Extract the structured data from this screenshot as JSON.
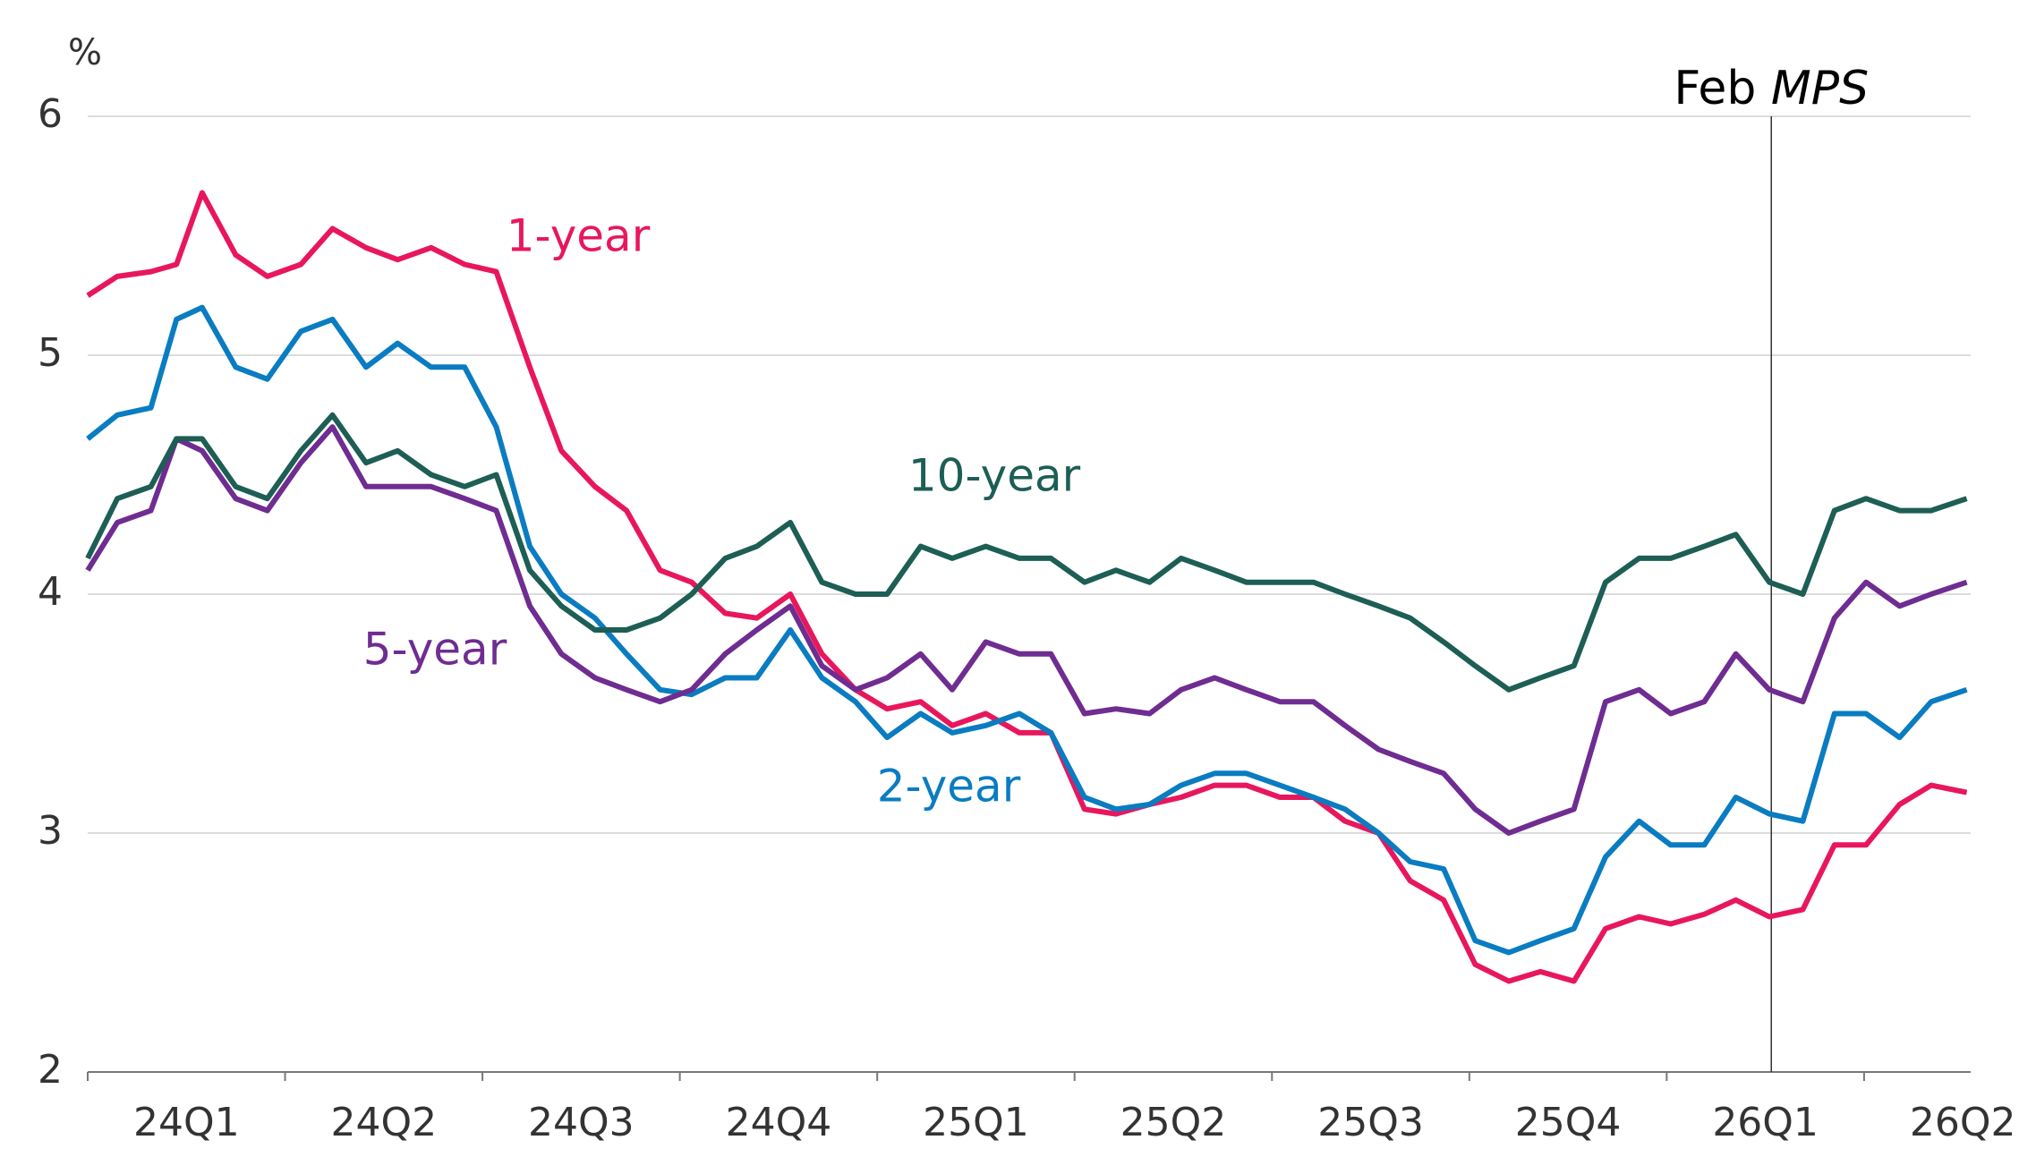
{
  "chart_data": {
    "type": "line",
    "y_unit": "%",
    "x": [
      0,
      0.15,
      0.32,
      0.45,
      0.58,
      0.75,
      0.91,
      1.08,
      1.24,
      1.41,
      1.57,
      1.74,
      1.91,
      2.07,
      2.24,
      2.4,
      2.57,
      2.73,
      2.9,
      3.06,
      3.23,
      3.39,
      3.56,
      3.72,
      3.89,
      4.05,
      4.22,
      4.38,
      4.55,
      4.72,
      4.88,
      5.05,
      5.21,
      5.38,
      5.54,
      5.71,
      5.87,
      6.04,
      6.21,
      6.37,
      6.54,
      6.7,
      6.87,
      7.03,
      7.2,
      7.36,
      7.53,
      7.69,
      7.86,
      8.02,
      8.19,
      8.35,
      8.52,
      8.69,
      8.85,
      9.01,
      9.18,
      9.34,
      9.52
    ],
    "categories": [
      "24Q1",
      "24Q2",
      "24Q3",
      "24Q4",
      "25Q1",
      "25Q2",
      "25Q3",
      "25Q4",
      "26Q1",
      "26Q2"
    ],
    "xlim": [
      0,
      9.54
    ],
    "xticks": [
      0,
      1,
      2,
      3,
      4,
      5,
      6,
      7,
      8,
      9
    ],
    "ylim": [
      2,
      6
    ],
    "yticks": [
      2,
      3,
      4,
      5,
      6
    ],
    "grid": true,
    "annotation": {
      "text": "Feb",
      "emph": "MPS",
      "x": 8.53
    },
    "series": [
      {
        "name": "1-year",
        "color": "#e8175d",
        "values": [
          5.25,
          5.33,
          5.35,
          5.38,
          5.68,
          5.42,
          5.33,
          5.38,
          5.53,
          5.45,
          5.4,
          5.45,
          5.38,
          5.35,
          4.95,
          4.6,
          4.45,
          4.35,
          4.1,
          4.05,
          3.92,
          3.9,
          4.0,
          3.75,
          3.6,
          3.52,
          3.55,
          3.45,
          3.5,
          3.42,
          3.42,
          3.1,
          3.08,
          3.12,
          3.15,
          3.2,
          3.2,
          3.15,
          3.15,
          3.05,
          3.0,
          2.8,
          2.72,
          2.45,
          2.38,
          2.42,
          2.38,
          2.6,
          2.65,
          2.62,
          2.66,
          2.72,
          2.65,
          2.68,
          2.95,
          2.95,
          3.12,
          3.2,
          3.17
        ]
      },
      {
        "name": "2-year",
        "color": "#0a7cc1",
        "values": [
          4.65,
          4.75,
          4.78,
          5.15,
          5.2,
          4.95,
          4.9,
          5.1,
          5.15,
          4.95,
          5.05,
          4.95,
          4.95,
          4.7,
          4.2,
          4.0,
          3.9,
          3.75,
          3.6,
          3.58,
          3.65,
          3.65,
          3.85,
          3.65,
          3.55,
          3.4,
          3.5,
          3.42,
          3.45,
          3.5,
          3.42,
          3.15,
          3.1,
          3.12,
          3.2,
          3.25,
          3.25,
          3.2,
          3.15,
          3.1,
          3.0,
          2.88,
          2.85,
          2.55,
          2.5,
          2.55,
          2.6,
          2.9,
          3.05,
          2.95,
          2.95,
          3.15,
          3.08,
          3.05,
          3.5,
          3.5,
          3.4,
          3.55,
          3.6
        ]
      },
      {
        "name": "5-year",
        "color": "#6f2c91",
        "values": [
          4.1,
          4.3,
          4.35,
          4.65,
          4.6,
          4.4,
          4.35,
          4.55,
          4.7,
          4.45,
          4.45,
          4.45,
          4.4,
          4.35,
          3.95,
          3.75,
          3.65,
          3.6,
          3.55,
          3.6,
          3.75,
          3.85,
          3.95,
          3.7,
          3.6,
          3.65,
          3.75,
          3.6,
          3.8,
          3.75,
          3.75,
          3.5,
          3.52,
          3.5,
          3.6,
          3.65,
          3.6,
          3.55,
          3.55,
          3.45,
          3.35,
          3.3,
          3.25,
          3.1,
          3.0,
          3.05,
          3.1,
          3.55,
          3.6,
          3.5,
          3.55,
          3.75,
          3.6,
          3.55,
          3.9,
          4.05,
          3.95,
          4.0,
          4.05
        ]
      },
      {
        "name": "10-year",
        "color": "#1d5e55",
        "values": [
          4.15,
          4.4,
          4.45,
          4.65,
          4.65,
          4.45,
          4.4,
          4.6,
          4.75,
          4.55,
          4.6,
          4.5,
          4.45,
          4.5,
          4.1,
          3.95,
          3.85,
          3.85,
          3.9,
          4.0,
          4.15,
          4.2,
          4.3,
          4.05,
          4.0,
          4.0,
          4.2,
          4.15,
          4.2,
          4.15,
          4.15,
          4.05,
          4.1,
          4.05,
          4.15,
          4.1,
          4.05,
          4.05,
          4.05,
          4.0,
          3.95,
          3.9,
          3.8,
          3.7,
          3.6,
          3.65,
          3.7,
          4.05,
          4.15,
          4.15,
          4.2,
          4.25,
          4.05,
          4.0,
          4.35,
          4.4,
          4.35,
          4.35,
          4.4
        ]
      }
    ]
  }
}
